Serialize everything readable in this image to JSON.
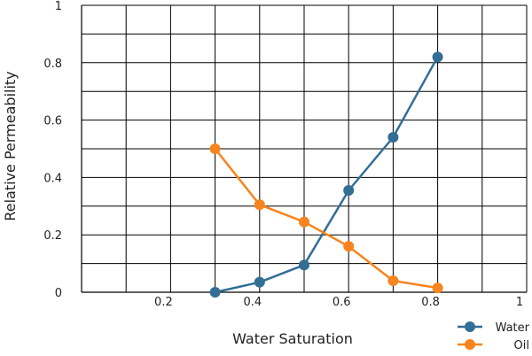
{
  "chart_data": {
    "type": "line",
    "title": "",
    "xlabel": "Water Saturation",
    "ylabel": "Relative Permeability",
    "xlim": [
      0,
      1
    ],
    "ylim": [
      0,
      1
    ],
    "grid": true,
    "legend_position": "bottom-right",
    "x_ticks": [
      0.2,
      0.4,
      0.6,
      0.8,
      1
    ],
    "x_tick_labels": [
      "0.2",
      "0.4",
      "0.6",
      "0.8",
      "1"
    ],
    "y_ticks": [
      0,
      0.2,
      0.4,
      0.6,
      0.8,
      1
    ],
    "y_tick_labels": [
      "0",
      "0.2",
      "0.4",
      "0.6",
      "0.8",
      "1"
    ],
    "x_gridlines": [
      0.1,
      0.2,
      0.3,
      0.4,
      0.5,
      0.6,
      0.7,
      0.8,
      0.9,
      1
    ],
    "y_gridlines": [
      0.1,
      0.2,
      0.3,
      0.4,
      0.5,
      0.6,
      0.7,
      0.8,
      0.9,
      1
    ],
    "series": [
      {
        "name": "Water",
        "color": "#336E95",
        "x": [
          0.3,
          0.4,
          0.5,
          0.6,
          0.7,
          0.8
        ],
        "y": [
          0.0,
          0.035,
          0.095,
          0.355,
          0.54,
          0.82
        ]
      },
      {
        "name": "Oil",
        "color": "#F7841E",
        "x": [
          0.3,
          0.4,
          0.5,
          0.6,
          0.7,
          0.8
        ],
        "y": [
          0.5,
          0.305,
          0.245,
          0.16,
          0.04,
          0.015
        ]
      }
    ]
  }
}
